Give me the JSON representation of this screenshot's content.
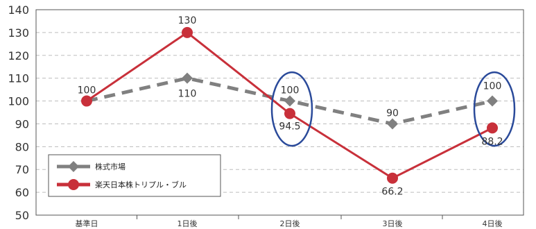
{
  "chart_data": {
    "type": "line",
    "categories": [
      "基準日",
      "1日後",
      "2日後",
      "3日後",
      "4日後"
    ],
    "ylim": [
      50,
      140
    ],
    "yticks": [
      50,
      60,
      70,
      80,
      90,
      100,
      110,
      120,
      130,
      140
    ],
    "grid": true,
    "legend_position": "bottom-left",
    "series": [
      {
        "name": "株式市場",
        "values": [
          100,
          110,
          100,
          90,
          100
        ],
        "labels": [
          "100",
          "110",
          "100",
          "90",
          "100"
        ],
        "color": "#808080",
        "line_style": "dashed",
        "marker": "diamond"
      },
      {
        "name": "楽天日本株トリプル・ブル",
        "values": [
          100,
          130,
          94.5,
          66.2,
          88.2
        ],
        "labels": [
          "",
          "130",
          "94.5",
          "66.2",
          "88.2"
        ],
        "color": "#c8303a",
        "line_style": "solid",
        "marker": "circle"
      }
    ],
    "annotations": [
      {
        "type": "ellipse",
        "category": "2日後",
        "color": "#2a4a9a"
      },
      {
        "type": "ellipse",
        "category": "4日後",
        "color": "#2a4a9a"
      }
    ]
  }
}
